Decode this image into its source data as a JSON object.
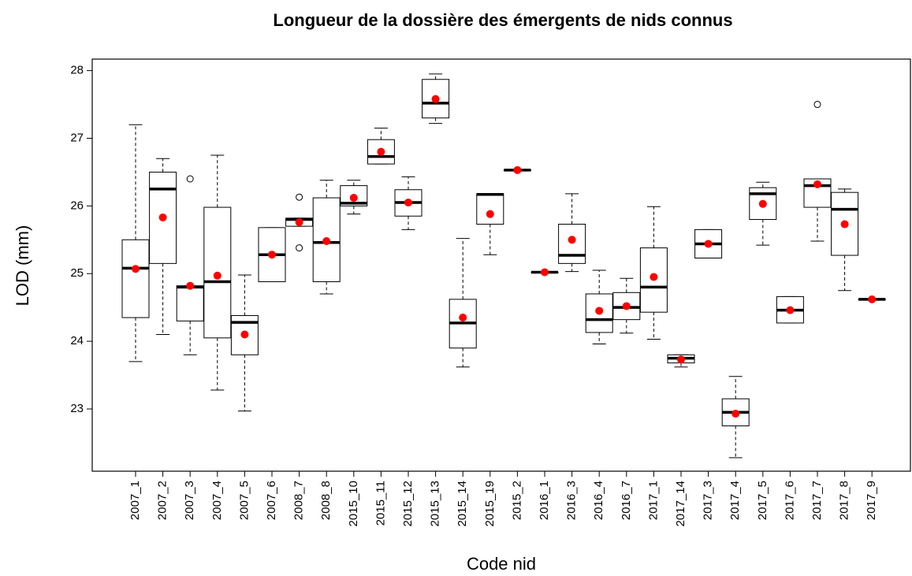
{
  "chart_data": {
    "type": "box",
    "title": "Longueur de la dossière des émergents de nids connus",
    "x_label": "Code nid",
    "y_label": "LOD (mm)",
    "box_color": "#000000",
    "mean_color": "#ff0000",
    "ylim": [
      22.08,
      28.17
    ],
    "yticks": [
      23,
      24,
      25,
      26,
      27,
      28
    ],
    "categories": [
      "2007_1",
      "2007_2",
      "2007_3",
      "2007_4",
      "2007_5",
      "2007_6",
      "2008_7",
      "2008_8",
      "2015_10",
      "2015_11",
      "2015_12",
      "2015_13",
      "2015_14",
      "2015_19",
      "2015_2",
      "2016_1",
      "2016_3",
      "2016_4",
      "2016_7",
      "2017_1",
      "2017_14",
      "2017_3",
      "2017_4",
      "2017_5",
      "2017_6",
      "2017_7",
      "2017_8",
      "2017_9"
    ],
    "boxes": [
      {
        "low": 23.7,
        "q1": 24.35,
        "median": 25.08,
        "q3": 25.5,
        "high": 27.2,
        "mean": 25.07
      },
      {
        "low": 24.1,
        "q1": 25.15,
        "median": 26.25,
        "q3": 26.5,
        "high": 26.7,
        "mean": 25.83
      },
      {
        "low": 23.8,
        "q1": 24.3,
        "median": 24.8,
        "q3": 24.82,
        "high": 24.82,
        "mean": 24.82,
        "outliers": [
          26.4
        ]
      },
      {
        "low": 23.28,
        "q1": 24.05,
        "median": 24.88,
        "q3": 25.98,
        "high": 26.75,
        "mean": 24.97
      },
      {
        "low": 22.97,
        "q1": 23.8,
        "median": 24.28,
        "q3": 24.38,
        "high": 24.98,
        "mean": 24.1
      },
      {
        "low": 24.88,
        "q1": 24.88,
        "median": 25.28,
        "q3": 25.68,
        "high": 25.68,
        "mean": 25.28
      },
      {
        "low": 25.7,
        "q1": 25.7,
        "median": 25.8,
        "q3": 25.82,
        "high": 25.82,
        "mean": 25.76,
        "outliers": [
          26.13,
          25.38
        ]
      },
      {
        "low": 24.7,
        "q1": 24.88,
        "median": 25.46,
        "q3": 26.12,
        "high": 26.38,
        "mean": 25.48
      },
      {
        "low": 25.88,
        "q1": 26.0,
        "median": 26.04,
        "q3": 26.3,
        "high": 26.38,
        "mean": 26.12
      },
      {
        "low": 26.62,
        "q1": 26.62,
        "median": 26.73,
        "q3": 26.98,
        "high": 27.15,
        "mean": 26.8
      },
      {
        "low": 25.65,
        "q1": 25.85,
        "median": 26.05,
        "q3": 26.24,
        "high": 26.43,
        "mean": 26.05
      },
      {
        "low": 27.22,
        "q1": 27.3,
        "median": 27.52,
        "q3": 27.87,
        "high": 27.95,
        "mean": 27.58
      },
      {
        "low": 23.62,
        "q1": 23.9,
        "median": 24.27,
        "q3": 24.62,
        "high": 25.52,
        "mean": 24.35
      },
      {
        "low": 25.28,
        "q1": 25.73,
        "median": 26.17,
        "q3": 26.18,
        "high": 26.18,
        "mean": 25.88
      },
      {
        "low": 26.53,
        "q1": 26.53,
        "median": 26.53,
        "q3": 26.53,
        "high": 26.53,
        "mean": 26.53
      },
      {
        "low": 25.02,
        "q1": 25.02,
        "median": 25.02,
        "q3": 25.02,
        "high": 25.02,
        "mean": 25.02
      },
      {
        "low": 25.03,
        "q1": 25.15,
        "median": 25.27,
        "q3": 25.73,
        "high": 26.18,
        "mean": 25.5
      },
      {
        "low": 23.96,
        "q1": 24.13,
        "median": 24.32,
        "q3": 24.7,
        "high": 25.05,
        "mean": 24.45
      },
      {
        "low": 24.12,
        "q1": 24.32,
        "median": 24.5,
        "q3": 24.72,
        "high": 24.93,
        "mean": 24.52
      },
      {
        "low": 24.03,
        "q1": 24.43,
        "median": 24.8,
        "q3": 25.38,
        "high": 25.99,
        "mean": 24.95
      },
      {
        "low": 23.62,
        "q1": 23.68,
        "median": 23.75,
        "q3": 23.8,
        "high": 23.8,
        "mean": 23.73
      },
      {
        "low": 25.23,
        "q1": 25.23,
        "median": 25.44,
        "q3": 25.65,
        "high": 25.65,
        "mean": 25.44
      },
      {
        "low": 22.28,
        "q1": 22.75,
        "median": 22.95,
        "q3": 23.15,
        "high": 23.48,
        "mean": 22.93
      },
      {
        "low": 25.42,
        "q1": 25.8,
        "median": 26.18,
        "q3": 26.27,
        "high": 26.35,
        "mean": 26.03
      },
      {
        "low": 24.27,
        "q1": 24.27,
        "median": 24.46,
        "q3": 24.66,
        "high": 24.66,
        "mean": 24.46
      },
      {
        "low": 25.48,
        "q1": 25.98,
        "median": 26.3,
        "q3": 26.4,
        "high": 26.4,
        "mean": 26.32,
        "outliers": [
          27.5
        ]
      },
      {
        "low": 24.75,
        "q1": 25.27,
        "median": 25.95,
        "q3": 26.2,
        "high": 26.25,
        "mean": 25.73
      },
      {
        "low": 24.62,
        "q1": 24.62,
        "median": 24.62,
        "q3": 24.62,
        "high": 24.62,
        "mean": 24.62
      }
    ]
  }
}
